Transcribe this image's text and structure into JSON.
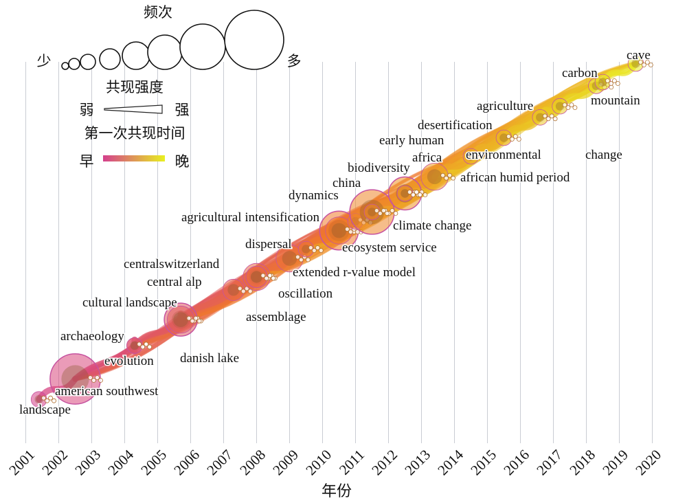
{
  "legend": {
    "frequency_title": "频次",
    "few": "少",
    "many": "多",
    "strength_title": "共现强度",
    "weak": "弱",
    "strong": "强",
    "time_title": "第一次共现时间",
    "early": "早",
    "late": "晚",
    "color_early": "#d43f8d",
    "color_late": "#e8f020"
  },
  "chart_data": {
    "type": "timeline-network",
    "xlabel": "年份",
    "years": [
      "2001",
      "2002",
      "2003",
      "2004",
      "2005",
      "2006",
      "2007",
      "2008",
      "2009",
      "2010",
      "2011",
      "2012",
      "2013",
      "2014",
      "2015",
      "2016",
      "2017",
      "2018",
      "2019",
      "2020"
    ],
    "keywords": [
      {
        "label": "landscape",
        "year": 2001.4,
        "freq": 2
      },
      {
        "label": "american southwest",
        "year": 2002.5,
        "freq": 8
      },
      {
        "label": "evolution",
        "year": 2004.3,
        "freq": 2
      },
      {
        "label": "archaeology",
        "year": 2004.3,
        "freq": 2
      },
      {
        "label": "danish lake",
        "year": 2005.7,
        "freq": 5
      },
      {
        "label": "cultural landscape",
        "year": 2005.7,
        "freq": 4
      },
      {
        "label": "central alp",
        "year": 2007.3,
        "freq": 3
      },
      {
        "label": "assemblage",
        "year": 2008.0,
        "freq": 4
      },
      {
        "label": "oscillation",
        "year": 2008.0,
        "freq": 3
      },
      {
        "label": "centralswitzerland",
        "year": 2008.0,
        "freq": 3
      },
      {
        "label": "extended r-value model",
        "year": 2009.0,
        "freq": 4
      },
      {
        "label": "dispersal",
        "year": 2009.5,
        "freq": 2
      },
      {
        "label": "agricultural intensification",
        "year": 2010.5,
        "freq": 6
      },
      {
        "label": "ecosystem service",
        "year": 2010.5,
        "freq": 4
      },
      {
        "label": "dynamics",
        "year": 2011.0,
        "freq": 2
      },
      {
        "label": "climate change",
        "year": 2011.5,
        "freq": 7
      },
      {
        "label": "china",
        "year": 2011.5,
        "freq": 2
      },
      {
        "label": "biodiversity",
        "year": 2012.5,
        "freq": 5
      },
      {
        "label": "early human",
        "year": 2012.5,
        "freq": 2
      },
      {
        "label": "africa",
        "year": 2012.5,
        "freq": 2
      },
      {
        "label": "african humid period",
        "year": 2013.4,
        "freq": 4
      },
      {
        "label": "environmental",
        "year": 2014.5,
        "freq": 2
      },
      {
        "label": "desertification",
        "year": 2015.5,
        "freq": 2
      },
      {
        "label": "agriculture",
        "year": 2016.6,
        "freq": 2
      },
      {
        "label": "change",
        "year": 2017.2,
        "freq": 2
      },
      {
        "label": "mountain",
        "year": 2018.5,
        "freq": 2
      },
      {
        "label": "carbon",
        "year": 2018.3,
        "freq": 2
      },
      {
        "label": "cave",
        "year": 2019.5,
        "freq": 2
      }
    ]
  }
}
